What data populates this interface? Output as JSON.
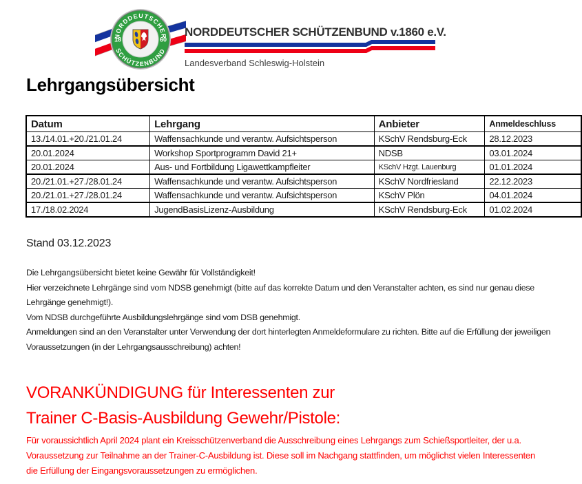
{
  "header": {
    "org_name": "NORDDEUTSCHER SCHÜTZENBUND v.1860 e.V.",
    "suborg_name": "Landesverband Schleswig-Holstein",
    "logo": {
      "ring_text_top": "NORDDEUTSCHER",
      "ring_text_bottom": "SCHÜTZENBUND",
      "year_left": "18",
      "year_right": "60"
    },
    "colors": {
      "brand_blue": "#14339e",
      "brand_red": "#ee0016",
      "logo_green": "#2f9e41",
      "shield_gold": "#f2c317",
      "shield_red": "#d01820"
    }
  },
  "page_title": "Lehrgangsübersicht",
  "table": {
    "columns": [
      "Datum",
      "Lehrgang",
      "Anbieter",
      "Anmeldeschluss"
    ],
    "rows": [
      [
        "13./14.01.+20./21.01.24",
        "Waffensachkunde und verantw. Aufsichtsperson",
        "KSchV Rendsburg-Eck",
        "28.12.2023"
      ],
      [
        "20.01.2024",
        "Workshop Sportprogramm David 21+",
        "NDSB",
        "03.01.2024"
      ],
      [
        "20.01.2024",
        "Aus- und Fortbildung Ligawettkampfleiter",
        "KSchV Hzgt. Lauenburg",
        "01.01.2024"
      ],
      [
        "20./21.01.+27./28.01.24",
        "Waffensachkunde und verantw. Aufsichtsperson",
        "KSchV Nordfriesland",
        "22.12.2023"
      ],
      [
        "20./21.01.+27./28.01.24",
        "Waffensachkunde und verantw. Aufsichtsperson",
        "KSchV Plön",
        "04.01.2024"
      ],
      [
        "17./18.02.2024",
        "JugendBasisLizenz-Ausbildung",
        "KSchV Rendsburg-Eck",
        "01.02.2024"
      ]
    ]
  },
  "stand_label": "Stand 03.12.2023",
  "notes": [
    "Die Lehrgangsübersicht bietet keine Gewähr für Vollständigkeit!",
    "Hier verzeichnete Lehrgänge sind vom NDSB genehmigt (bitte auf das korrekte Datum und den Veranstalter achten, es sind nur genau diese Lehrgänge genehmigt!).",
    "Vom NDSB durchgeführte Ausbildungslehrgänge sind vom DSB genehmigt.",
    "Anmeldungen sind an den Veranstalter unter Verwendung der dort hinterlegten Anmeldeformulare zu richten. Bitte auf die Erfüllung der jeweiligen Voraussetzungen (in der Lehrgangsausschreibung) achten!"
  ],
  "announcement": {
    "heading_line1": "VORANKÜNDIGUNG für Interessenten zur",
    "heading_line2": "Trainer C-Basis-Ausbildung Gewehr/Pistole:",
    "body": "Für voraussichtlich April 2024 plant ein Kreisschützenverband die Ausschreibung eines Lehrgangs zum Schießsportleiter, der u.a. Voraussetzung zur Teilnahme an der Trainer-C-Ausbildung ist. Diese soll im Nachgang stattfinden, um möglichst vielen Interessenten die Erfüllung der Eingangsvoraussetzungen zu ermöglichen.",
    "text_color": "#ff0000"
  }
}
